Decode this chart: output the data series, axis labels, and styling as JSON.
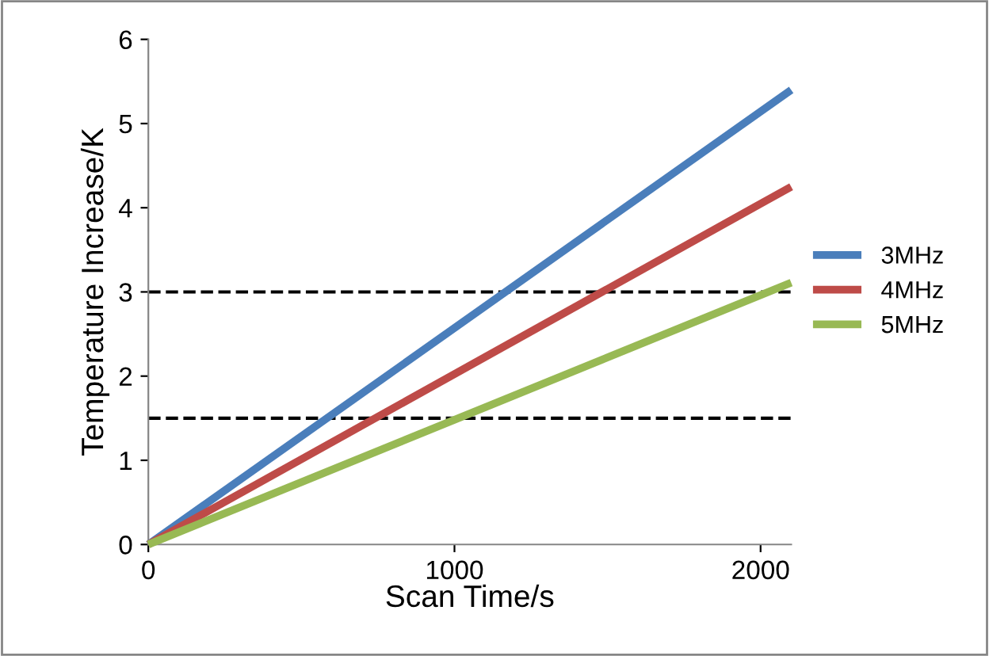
{
  "chart_data": {
    "type": "line",
    "xlabel": "Scan Time/s",
    "ylabel": "Temperature Increase/K",
    "x": [
      0,
      2100
    ],
    "series": [
      {
        "name": "3MHz",
        "color": "#4a7ebb",
        "values": [
          0,
          5.4
        ]
      },
      {
        "name": "4MHz",
        "color": "#be4b48",
        "values": [
          0,
          4.25
        ]
      },
      {
        "name": "5MHz",
        "color": "#98b954",
        "values": [
          0,
          3.11
        ]
      }
    ],
    "xlim": [
      0,
      2100
    ],
    "ylim": [
      0,
      6
    ],
    "xticks": [
      0,
      1000,
      2000
    ],
    "yticks": [
      0,
      1,
      2,
      3,
      4,
      5,
      6
    ],
    "ref_lines": [
      {
        "axis": "y",
        "value": 3,
        "color": "#000000",
        "line_style": "dashed"
      },
      {
        "axis": "y",
        "value": 1.5,
        "color": "#000000",
        "line_style": "dashed"
      }
    ],
    "grid": false,
    "legend": "right",
    "marker": "none",
    "line_style": "solid"
  }
}
